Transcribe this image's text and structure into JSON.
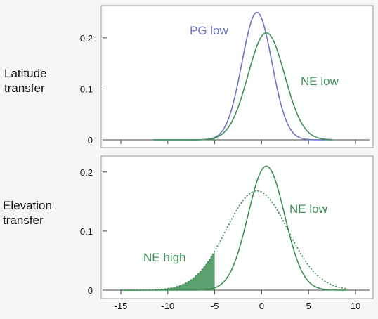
{
  "chart_data": [
    {
      "type": "line",
      "row_label": [
        "Latitude",
        "transfer"
      ],
      "xlim": [
        -16.5,
        11.5
      ],
      "ylim": [
        0,
        0.255
      ],
      "yticks": [
        "0",
        "0.1",
        "0.2"
      ],
      "ytick_values": [
        0,
        0.1,
        0.2
      ],
      "grid": false,
      "series": [
        {
          "name": "PG low",
          "color": "#6a74c2",
          "style": "solid",
          "mean": -0.5,
          "sd": 1.6,
          "peak": 0.25,
          "x_range": [
            -11.5,
            7.5
          ]
        },
        {
          "name": "NE low",
          "color": "#3f8f56",
          "style": "solid",
          "mean": 0.5,
          "sd": 1.95,
          "peak": 0.21,
          "x_range": [
            -11.5,
            7.5
          ]
        }
      ],
      "shaded_tail": {
        "series": "NE low",
        "x_max": -5,
        "color": "#3f8f56"
      }
    },
    {
      "type": "line",
      "row_label": [
        "Elevation",
        "transfer"
      ],
      "xlim": [
        -16.5,
        11.5
      ],
      "ylim": [
        0,
        0.22
      ],
      "xticks": [
        "-15",
        "-10",
        "-5",
        "0",
        "5",
        "10"
      ],
      "xtick_values": [
        -15,
        -10,
        -5,
        0,
        5,
        10
      ],
      "yticks": [
        "0",
        "0.1",
        "0.2"
      ],
      "ytick_values": [
        0,
        0.1,
        0.2
      ],
      "grid": false,
      "series": [
        {
          "name": "NE low",
          "color": "#3f8f56",
          "style": "solid",
          "mean": 0.5,
          "sd": 1.95,
          "peak": 0.21,
          "x_range": [
            -15,
            9
          ]
        },
        {
          "name": "NE high",
          "color": "#3f8f56",
          "style": "dotted",
          "mean": -0.5,
          "sd": 3.3,
          "peak": 0.168,
          "x_range": [
            -15,
            9
          ]
        }
      ],
      "shaded_tail": {
        "series": "NE high",
        "x_max": -5,
        "color": "#3f8f56"
      }
    }
  ]
}
